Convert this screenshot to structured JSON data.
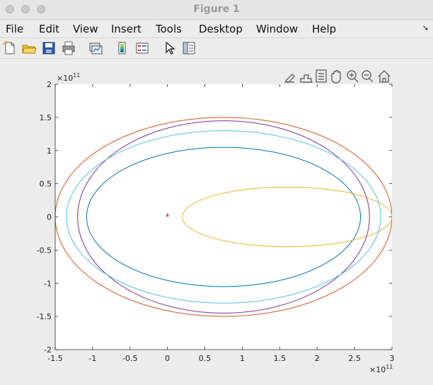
{
  "window": {
    "title": "Figure 1",
    "traffic_lights": [
      "close-button",
      "minimize-button",
      "zoom-button"
    ]
  },
  "menubar": {
    "items": [
      "File",
      "Edit",
      "View",
      "Insert",
      "Tools",
      "Desktop",
      "Window",
      "Help"
    ],
    "dock_icon": "dock-arrow-icon",
    "dock_glyph": "➘"
  },
  "toolbar": {
    "icons": [
      "new-figure-icon",
      "open-file-icon",
      "save-icon",
      "print-icon",
      "link-plot-icon",
      "colorbar-icon",
      "legend-icon",
      "pointer-icon",
      "property-inspector-icon"
    ]
  },
  "axes_toolbar": {
    "icons": [
      "edit-brush-icon",
      "data-brush-icon",
      "datatip-icon",
      "pan-hand-icon",
      "zoom-in-icon",
      "zoom-out-icon",
      "home-icon"
    ]
  },
  "chart_data": {
    "type": "line",
    "title": "",
    "xlabel": "",
    "ylabel": "",
    "xlim": [
      -150000000000.0,
      300000000000.0
    ],
    "ylim": [
      -200000000000.0,
      200000000000.0
    ],
    "x_ticks": [
      -1.5,
      -1,
      -0.5,
      0,
      0.5,
      1,
      1.5,
      2,
      2.5,
      3
    ],
    "y_ticks": [
      -2,
      -1.5,
      -1,
      -0.5,
      0,
      0.5,
      1,
      1.5,
      2
    ],
    "x_exponent_label": "×10",
    "x_exponent_power": "11",
    "y_exponent_label": "×10",
    "y_exponent_power": "11",
    "grid": false,
    "marker": {
      "x": 0,
      "y": 0,
      "symbol": "*",
      "color": "#a2142f"
    },
    "series": [
      {
        "cx": 75000000000.0,
        "cy": 0,
        "rx": 183000000000.0,
        "ry": 105000000000.0,
        "color": "#0072bd"
      },
      {
        "cx": 75000000000.0,
        "cy": 0,
        "rx": 225000000000.0,
        "ry": 150000000000.0,
        "color": "#d95319"
      },
      {
        "cx": 160000000000.0,
        "cy": 0,
        "rx": 140000000000.0,
        "ry": 45000000000.0,
        "color": "#edb120"
      },
      {
        "cx": 75000000000.0,
        "cy": 0,
        "rx": 195000000000.0,
        "ry": 145000000000.0,
        "color": "#7e2f8e"
      },
      {
        "cx": 75000000000.0,
        "cy": 0,
        "rx": 210000000000.0,
        "ry": 130000000000.0,
        "color": "#4dbeee"
      }
    ]
  }
}
